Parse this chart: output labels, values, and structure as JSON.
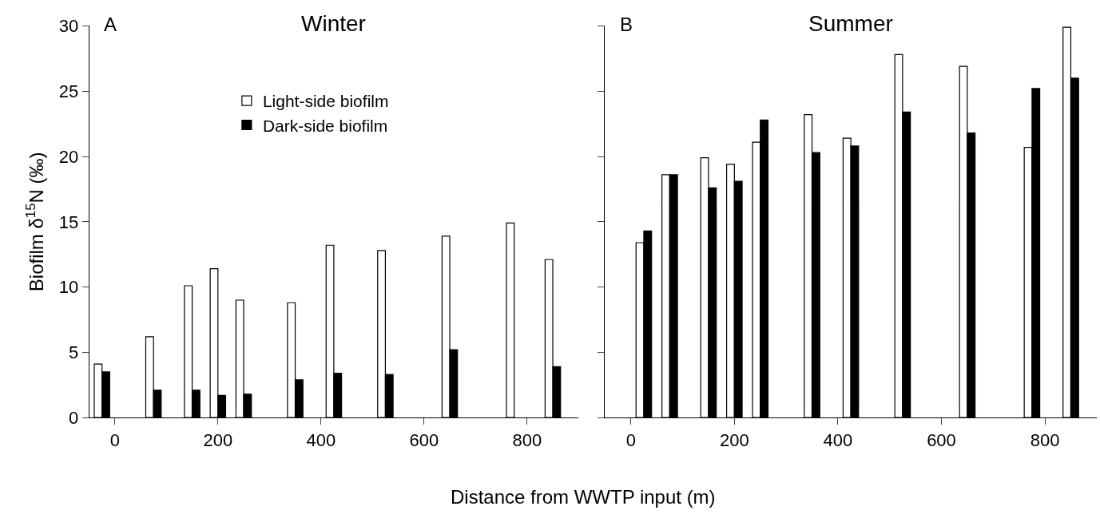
{
  "chart_data": [
    {
      "type": "bar",
      "title": "Winter",
      "ylabel": "Biofilm δ$^{15}$N (‰)",
      "xlabel": "Distance from WWTP input (m)",
      "annotations": [
        "A"
      ],
      "x": [
        -25,
        75,
        150,
        200,
        250,
        350,
        425,
        525,
        650,
        775,
        850
      ],
      "series": [
        {
          "name": "Light-side biofilm",
          "color": "#ffffff",
          "values": [
            4.1,
            6.2,
            10.1,
            11.4,
            9.0,
            8.8,
            13.2,
            12.8,
            13.9,
            14.9,
            12.1
          ]
        },
        {
          "name": "Dark-side biofilm",
          "color": "#000000",
          "values": [
            3.5,
            2.1,
            2.1,
            1.7,
            1.8,
            2.9,
            3.4,
            3.3,
            5.2,
            null,
            3.9
          ]
        }
      ],
      "xlim": [
        -50,
        900
      ],
      "xticks": [
        0,
        200,
        400,
        600,
        800
      ],
      "ylim": [
        0,
        30
      ],
      "yticks": [
        0,
        5,
        10,
        15,
        20,
        25,
        30
      ],
      "legend": "top"
    },
    {
      "type": "bar",
      "title": "Summer",
      "annotations": [
        "B"
      ],
      "x": [
        25,
        75,
        150,
        200,
        250,
        350,
        425,
        525,
        650,
        775,
        850
      ],
      "series": [
        {
          "color": "#ffffff",
          "values": [
            13.4,
            18.6,
            19.9,
            19.4,
            21.1,
            23.2,
            21.4,
            27.8,
            26.9,
            20.7,
            29.9
          ]
        },
        {
          "color": "#000000",
          "values": [
            14.3,
            18.6,
            17.6,
            18.1,
            22.8,
            20.3,
            20.8,
            23.4,
            21.8,
            25.2,
            26.0
          ]
        }
      ],
      "xlim": [
        -50,
        900
      ],
      "xticks": [
        0,
        200,
        400,
        600,
        800
      ],
      "ylim": [
        0,
        30
      ],
      "yticks": [
        0,
        5,
        10,
        15,
        20,
        25,
        30
      ],
      "tick_labels": "x"
    }
  ]
}
